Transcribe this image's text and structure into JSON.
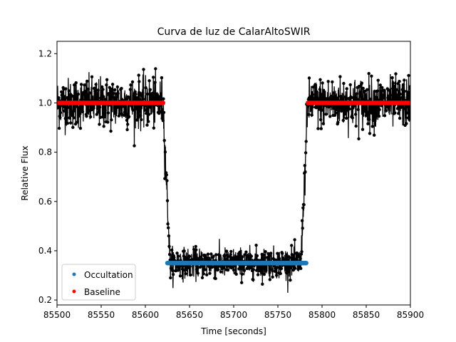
{
  "chart_data": {
    "type": "scatter",
    "title": "Curva de luz de CalarAltoSWIR",
    "xlabel": "Time [seconds]",
    "ylabel": "Relative Flux",
    "xlim": [
      85500,
      85900
    ],
    "ylim": [
      0.18,
      1.25
    ],
    "xticks": [
      "85500",
      "85550",
      "85600",
      "85650",
      "85700",
      "85750",
      "85800",
      "85850",
      "85900"
    ],
    "yticks": [
      "0.2",
      "0.4",
      "0.6",
      "0.8",
      "1.0",
      "1.2"
    ],
    "grid": false,
    "legend_position": "lower-left",
    "model": {
      "baseline_flux": 1.0,
      "occultation_flux": 0.35,
      "ingress_start": 85620,
      "ingress_end": 85628,
      "egress_start": 85776,
      "egress_end": 85784,
      "scatter_sigma_baseline": 0.05,
      "scatter_sigma_occultation": 0.03,
      "colors": {
        "data": "#000000",
        "occultation": "#1f77b4",
        "baseline": "#ff0000"
      }
    },
    "series": [
      {
        "name": "Occultation",
        "x_start": 85625,
        "x_end": 85782,
        "y": 0.35,
        "color": "#1f77b4"
      },
      {
        "name": "Baseline",
        "segments": [
          [
            85500,
            85620
          ],
          [
            85784,
            85900
          ]
        ],
        "y": 1.0,
        "color": "#ff0000"
      }
    ]
  }
}
